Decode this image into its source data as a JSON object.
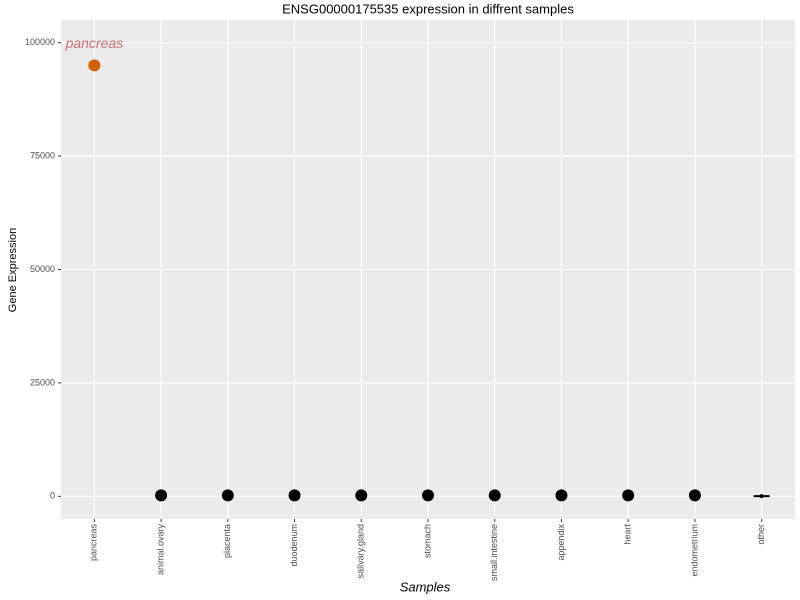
{
  "chart_data": {
    "type": "scatter",
    "title": "ENSG00000175535 expression in diffrent samples",
    "x_label": "Samples",
    "y_label": "Gene Expression",
    "categories": [
      "pancreas",
      "animal.ovary",
      "placenta",
      "duodenum",
      "salivary.gland",
      "stomach",
      "small.intestine",
      "appendix",
      "heart",
      "endometrium",
      "other"
    ],
    "values": [
      95000,
      200,
      200,
      200,
      200,
      200,
      200,
      200,
      200,
      200,
      50
    ],
    "colors": [
      "#d55e00",
      "#000000",
      "#000000",
      "#000000",
      "#000000",
      "#000000",
      "#000000",
      "#000000",
      "#000000",
      "#000000",
      "#000000"
    ],
    "markers": [
      "point",
      "point",
      "point",
      "point",
      "point",
      "point",
      "point",
      "point",
      "point",
      "point",
      "box"
    ],
    "annotation": "pancreas",
    "annotation_color": "#c87070",
    "ylim": [
      -5000,
      105000
    ],
    "yticks": [
      0,
      25000,
      50000,
      75000,
      100000
    ],
    "grid": true
  }
}
